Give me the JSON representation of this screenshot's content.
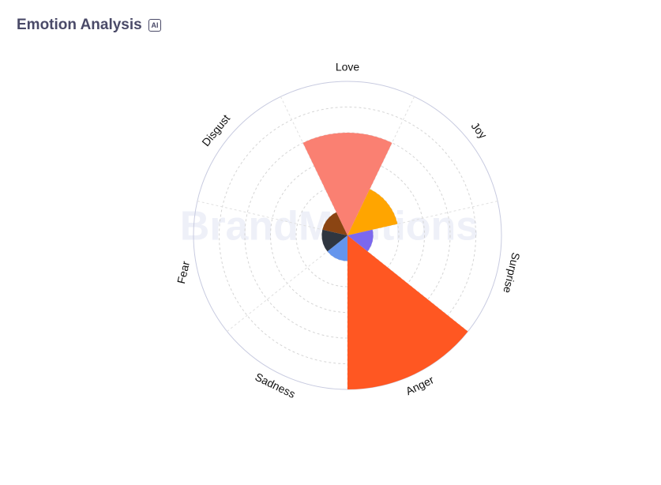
{
  "title": "Emotion Analysis",
  "ai_badge": "AI",
  "watermark": "BrandMentions",
  "chart_data": {
    "type": "polar-area",
    "categories": [
      "Love",
      "Joy",
      "Surprise",
      "Anger",
      "Sadness",
      "Fear",
      "Disgust"
    ],
    "values": [
      20,
      10,
      5,
      30,
      5,
      5,
      5
    ],
    "colors": [
      "#fa8072",
      "#ffa500",
      "#7b68ee",
      "#ff5722",
      "#6495ed",
      "#2f3640",
      "#8b4513"
    ],
    "rlim": [
      0,
      30
    ],
    "rticks": [
      0,
      5,
      10,
      15,
      20,
      25,
      30
    ],
    "grid": true
  }
}
